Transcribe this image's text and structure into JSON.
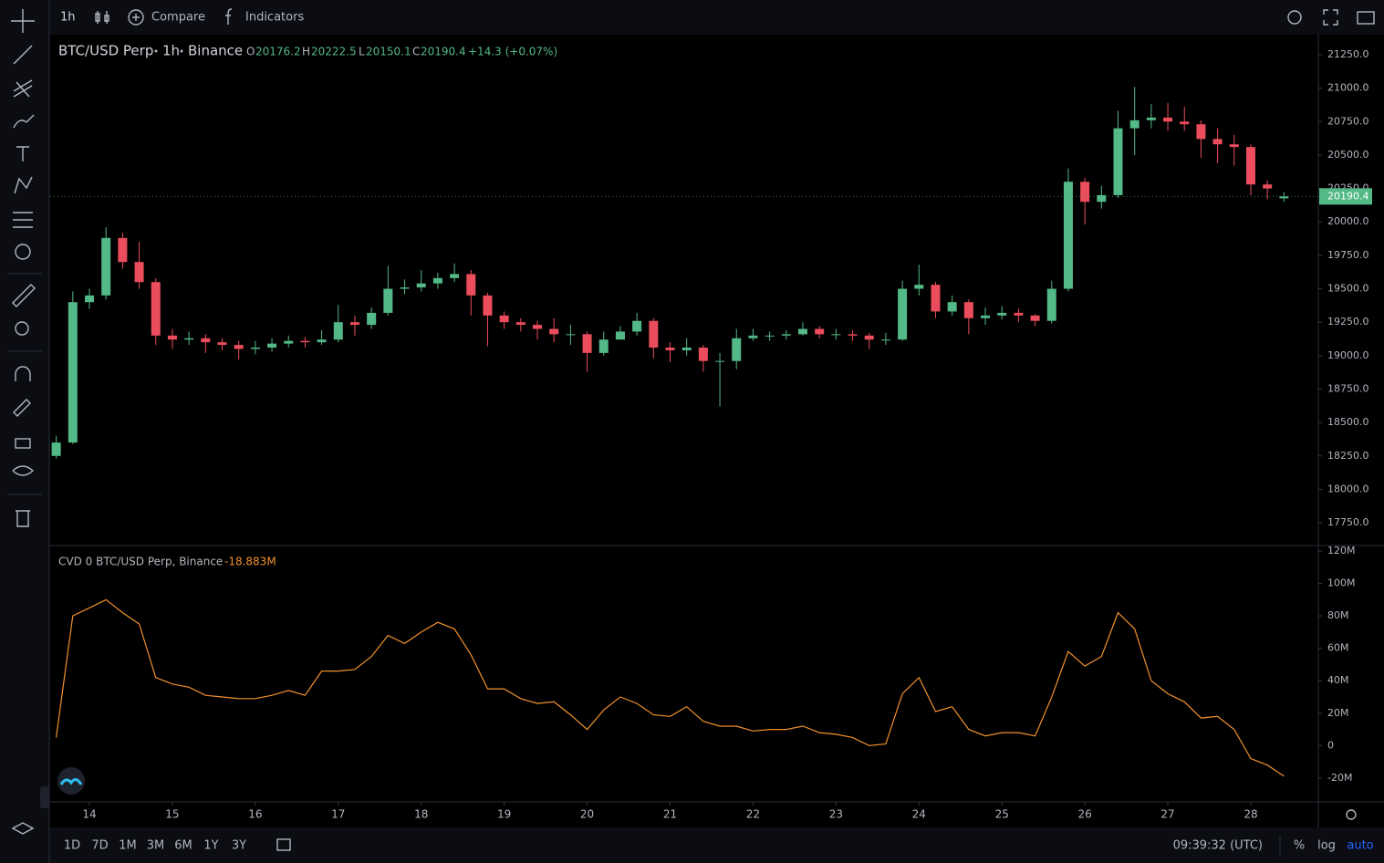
{
  "topbar": {
    "interval": "1h",
    "compare": "Compare",
    "indicators": "Indicators"
  },
  "legend": {
    "symbol": "BTC/USD Perp",
    "interval": "1h",
    "exchange": "Binance",
    "o": "O",
    "h": "H",
    "l": "L",
    "c": "C",
    "change": "+14.3 (+0.07%)"
  },
  "cvd_legend": {
    "name": "CVD 0 BTC/USD Perp, Binance",
    "value": "-18.883M"
  },
  "bottombar": {
    "ranges": [
      "1D",
      "7D",
      "1M",
      "3M",
      "6M",
      "1Y",
      "3Y"
    ],
    "clock": "09:39:32 (UTC)",
    "percent": "%",
    "log": "log",
    "auto": "auto"
  },
  "chart_data": [
    {
      "type": "candlestick",
      "up_color": "#53b987",
      "down_color": "#eb4d5c",
      "grid": false,
      "log": false,
      "xlim": [
        13.527,
        28.814
      ],
      "ylim": [
        17580,
        21400
      ],
      "yticks": [
        {
          "value": 17750,
          "label": "17750.0"
        },
        {
          "value": 18000,
          "label": "18000.0"
        },
        {
          "value": 18250,
          "label": "18250.0"
        },
        {
          "value": 18500,
          "label": "18500.0"
        },
        {
          "value": 18750,
          "label": "18750.0"
        },
        {
          "value": 19000,
          "label": "19000.0"
        },
        {
          "value": 19250,
          "label": "19250.0"
        },
        {
          "value": 19500,
          "label": "19500.0"
        },
        {
          "value": 19750,
          "label": "19750.0"
        },
        {
          "value": 20000,
          "label": "20000.0"
        },
        {
          "value": 20250,
          "label": "20250.0"
        },
        {
          "value": 20500,
          "label": "20500.0"
        },
        {
          "value": 20750,
          "label": "20750.0"
        },
        {
          "value": 21000,
          "label": "21000.0"
        },
        {
          "value": 21250,
          "label": "21250.0"
        }
      ],
      "x": [
        13.6,
        13.8,
        14.0,
        14.2,
        14.4,
        14.6,
        14.8,
        15.0,
        15.2,
        15.4,
        15.6,
        15.8,
        16.0,
        16.2,
        16.4,
        16.6,
        16.8,
        17.0,
        17.2,
        17.4,
        17.6,
        17.8,
        18.0,
        18.2,
        18.4,
        18.6,
        18.8,
        19.0,
        19.2,
        19.4,
        19.6,
        19.8,
        20.0,
        20.2,
        20.4,
        20.6,
        20.8,
        21.0,
        21.2,
        21.4,
        21.6,
        21.8,
        22.0,
        22.2,
        22.4,
        22.6,
        22.8,
        23.0,
        23.2,
        23.4,
        23.6,
        23.8,
        24.0,
        24.2,
        24.4,
        24.6,
        24.8,
        25.0,
        25.2,
        25.4,
        25.6,
        25.8,
        26.0,
        26.2,
        26.4,
        26.6,
        26.8,
        27.0,
        27.2,
        27.4,
        27.6,
        27.8,
        28.0,
        28.2,
        28.4
      ],
      "open": [
        18250,
        18350,
        19400,
        19450,
        19880,
        19700,
        19550,
        19150,
        19120,
        19130,
        19100,
        19080,
        19050,
        19060,
        19090,
        19110,
        19100,
        19120,
        19250,
        19230,
        19320,
        19500,
        19510,
        19540,
        19580,
        19610,
        19450,
        19300,
        19250,
        19230,
        19200,
        19160,
        19160,
        19020,
        19120,
        19180,
        19260,
        19060,
        19040,
        19060,
        18960,
        18960,
        19130,
        19150,
        19150,
        19160,
        19200,
        19160,
        19160,
        19150,
        19120,
        19120,
        19500,
        19530,
        19330,
        19400,
        19280,
        19300,
        19320,
        19300,
        19260,
        19500,
        20300,
        20150,
        20200,
        20700,
        20760,
        20780,
        20750,
        20730,
        20620,
        20580,
        20560,
        20280,
        20176.2
      ],
      "high": [
        18400,
        19480,
        19500,
        19960,
        19920,
        19850,
        19580,
        19200,
        19180,
        19160,
        19130,
        19110,
        19110,
        19130,
        19150,
        19140,
        19190,
        19380,
        19300,
        19360,
        19670,
        19570,
        19640,
        19620,
        19690,
        19640,
        19470,
        19330,
        19280,
        19260,
        19280,
        19230,
        19180,
        19180,
        19220,
        19320,
        19280,
        19100,
        19130,
        19080,
        19020,
        19200,
        19200,
        19180,
        19190,
        19250,
        19220,
        19200,
        19190,
        19170,
        19170,
        19560,
        19680,
        19550,
        19450,
        19420,
        19360,
        19370,
        19350,
        19310,
        19560,
        20400,
        20330,
        20270,
        20830,
        21010,
        20880,
        20890,
        20860,
        20760,
        20700,
        20650,
        20580,
        20310,
        20222.5
      ],
      "low": [
        18230,
        18340,
        19350,
        19420,
        19650,
        19500,
        19080,
        19050,
        19080,
        19020,
        19040,
        18970,
        19010,
        19030,
        19060,
        19060,
        19080,
        19100,
        19150,
        19200,
        19300,
        19460,
        19480,
        19500,
        19550,
        19300,
        19070,
        19200,
        19180,
        19120,
        19100,
        19080,
        18880,
        19000,
        19120,
        19150,
        18980,
        18950,
        19000,
        18880,
        18620,
        18900,
        19110,
        19110,
        19120,
        19150,
        19130,
        19120,
        19110,
        19050,
        19080,
        19110,
        19450,
        19280,
        19300,
        19160,
        19230,
        19270,
        19250,
        19220,
        19240,
        19480,
        19980,
        20100,
        20180,
        20500,
        20700,
        20680,
        20680,
        20480,
        20440,
        20420,
        20200,
        20170,
        20150.1
      ],
      "close": [
        18350,
        19400,
        19450,
        19880,
        19700,
        19550,
        19150,
        19120,
        19130,
        19100,
        19080,
        19050,
        19060,
        19090,
        19110,
        19100,
        19120,
        19250,
        19230,
        19320,
        19500,
        19510,
        19540,
        19580,
        19610,
        19450,
        19300,
        19250,
        19230,
        19200,
        19160,
        19160,
        19020,
        19120,
        19180,
        19260,
        19060,
        19040,
        19060,
        18960,
        18960,
        19130,
        19150,
        19150,
        19160,
        19200,
        19160,
        19160,
        19150,
        19120,
        19120,
        19500,
        19530,
        19330,
        19400,
        19280,
        19300,
        19320,
        19300,
        19260,
        19500,
        20300,
        20150,
        20200,
        20700,
        20760,
        20780,
        20750,
        20730,
        20620,
        20580,
        20560,
        20280,
        20250,
        20190.4
      ]
    },
    {
      "type": "line",
      "color": "#f0912e",
      "grid": false,
      "xlim": [
        13.527,
        28.814
      ],
      "ylim": [
        -34.7,
        123.4
      ],
      "xticks": [
        14,
        15,
        16,
        17,
        18,
        19,
        20,
        21,
        22,
        23,
        24,
        25,
        26,
        27,
        28
      ],
      "yticks": [
        {
          "value": -20,
          "label": "-20M"
        },
        0,
        {
          "value": 20,
          "label": "20M"
        },
        {
          "value": 40,
          "label": "40M"
        },
        {
          "value": 60,
          "label": "60M"
        },
        {
          "value": 80,
          "label": "80M"
        },
        {
          "value": 100,
          "label": "100M"
        },
        {
          "value": 120,
          "label": "120M"
        }
      ],
      "x": [
        13.6,
        13.8,
        14.0,
        14.2,
        14.4,
        14.6,
        14.8,
        15.0,
        15.2,
        15.4,
        15.6,
        15.8,
        16.0,
        16.2,
        16.4,
        16.6,
        16.8,
        17.0,
        17.2,
        17.4,
        17.6,
        17.8,
        18.0,
        18.2,
        18.4,
        18.6,
        18.8,
        19.0,
        19.2,
        19.4,
        19.6,
        19.8,
        20.0,
        20.2,
        20.4,
        20.6,
        20.8,
        21.0,
        21.2,
        21.4,
        21.6,
        21.8,
        22.0,
        22.2,
        22.4,
        22.6,
        22.8,
        23.0,
        23.2,
        23.4,
        23.6,
        23.8,
        24.0,
        24.2,
        24.4,
        24.6,
        24.8,
        25.0,
        25.2,
        25.4,
        25.6,
        25.8,
        26.0,
        26.2,
        26.4,
        26.6,
        26.8,
        27.0,
        27.2,
        27.4,
        27.6,
        27.8,
        28.0,
        28.2,
        28.4
      ],
      "values": [
        5,
        80,
        85,
        90,
        82,
        75,
        42,
        38,
        36,
        31,
        30,
        29,
        29,
        31,
        34,
        31,
        46,
        46,
        47,
        55,
        68,
        63,
        70,
        76,
        72,
        56,
        35,
        35,
        29,
        26,
        27,
        19,
        10,
        22,
        30,
        26,
        19,
        18,
        24,
        15,
        12,
        12,
        9,
        10,
        10,
        12,
        8,
        7,
        5,
        0,
        1,
        32,
        42,
        21,
        24,
        10,
        6,
        8,
        8,
        6,
        30,
        58,
        49,
        55,
        82,
        72,
        40,
        32,
        27,
        17,
        18,
        10,
        -8,
        -12,
        -18.883
      ]
    }
  ]
}
